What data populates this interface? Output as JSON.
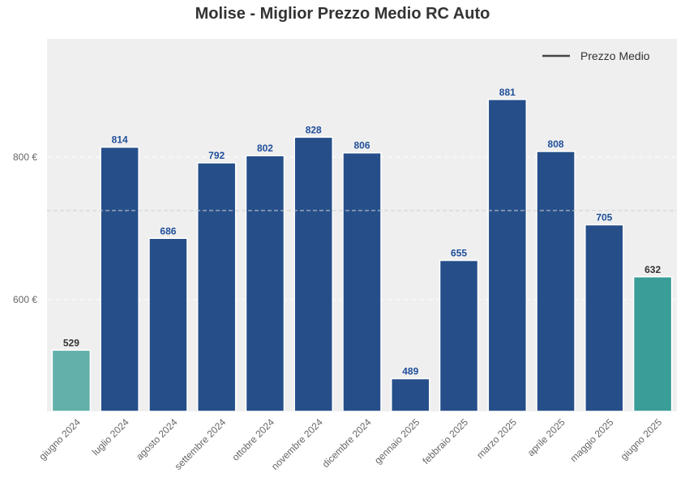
{
  "chart_data": {
    "type": "bar",
    "title": "Molise - Miglior Prezzo Medio RC Auto",
    "xlabel": "",
    "ylabel": "",
    "categories": [
      "giugno 2024",
      "luglio 2024",
      "agosto 2024",
      "settembre 2024",
      "ottobre 2024",
      "novembre 2024",
      "dicembre 2024",
      "gennaio 2025",
      "febbraio 2025",
      "marzo 2025",
      "aprile 2025",
      "maggio 2025",
      "giugno 2025"
    ],
    "values": [
      529,
      814,
      686,
      792,
      802,
      828,
      806,
      489,
      655,
      881,
      808,
      705,
      632
    ],
    "ylim": [
      443,
      966
    ],
    "yticks": [
      600,
      800
    ],
    "ytick_labels": [
      "600 €",
      "800 €"
    ],
    "mean_line": 725,
    "legend": {
      "label": "Prezzo Medio",
      "placement": "top-right"
    },
    "grid": true,
    "colors": {
      "default": "#264f8a",
      "first": "#62b0a9",
      "last": "#3a9d97",
      "label_default": "#1f4e9a",
      "label_highlight": "#333333",
      "background": "#efefef"
    }
  }
}
